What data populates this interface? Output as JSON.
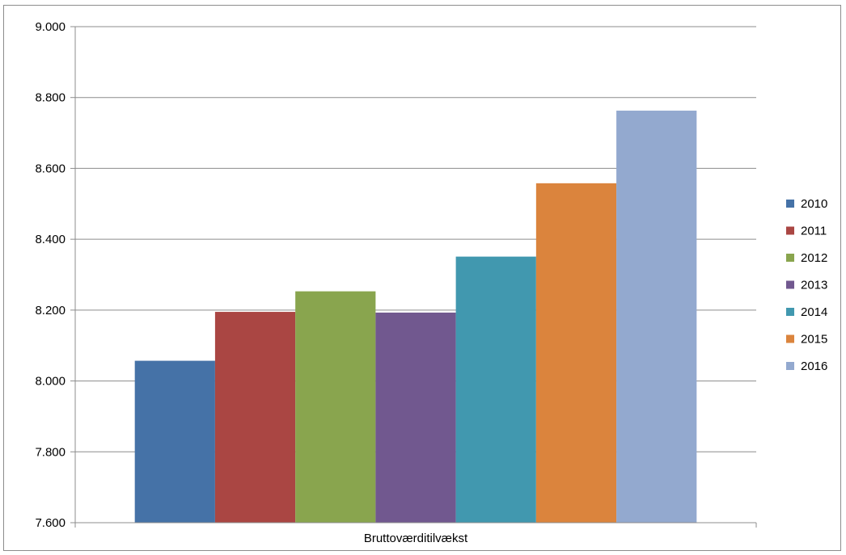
{
  "chart_data": {
    "type": "bar",
    "categories": [
      "Bruttoværditilvækst"
    ],
    "series": [
      {
        "name": "2010",
        "values": [
          8057
        ],
        "color": "#4572A7"
      },
      {
        "name": "2011",
        "values": [
          8195
        ],
        "color": "#AA4643"
      },
      {
        "name": "2012",
        "values": [
          8253
        ],
        "color": "#89A54E"
      },
      {
        "name": "2013",
        "values": [
          8193
        ],
        "color": "#71588F"
      },
      {
        "name": "2014",
        "values": [
          8351
        ],
        "color": "#4198AF"
      },
      {
        "name": "2015",
        "values": [
          8558
        ],
        "color": "#DB843D"
      },
      {
        "name": "2016",
        "values": [
          8763
        ],
        "color": "#93A9CF"
      }
    ],
    "ylim": [
      7600,
      9000
    ],
    "yticks": [
      7600,
      7800,
      8000,
      8200,
      8400,
      8600,
      8800,
      9000
    ],
    "ytick_labels": [
      "7.600",
      "7.800",
      "8.000",
      "8.200",
      "8.400",
      "8.600",
      "8.800",
      "9.000"
    ],
    "grid": true,
    "legend": "right"
  }
}
